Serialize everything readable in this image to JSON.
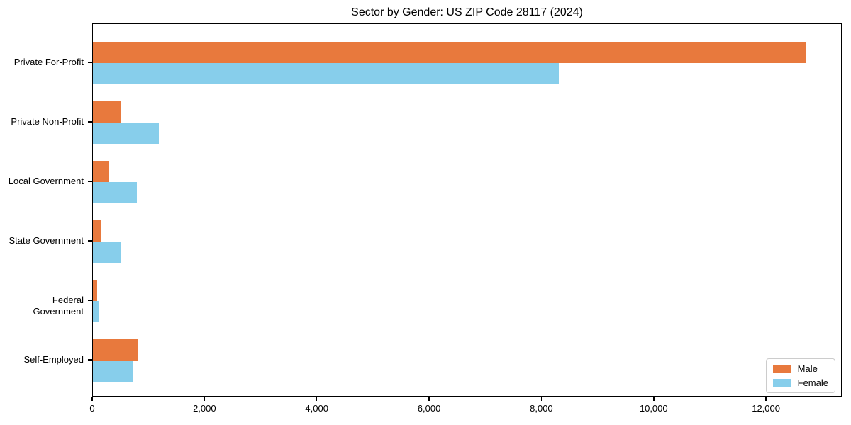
{
  "title": "Sector by Gender: US ZIP Code 28117 (2024)",
  "colors": {
    "male": "#e8793d",
    "female": "#87ceeb",
    "axis": "#000000",
    "legend_border": "#cccccc",
    "background": "#ffffff"
  },
  "legend": {
    "position": "lower right",
    "items": [
      {
        "label": "Male",
        "color": "#e8793d"
      },
      {
        "label": "Female",
        "color": "#87ceeb"
      }
    ]
  },
  "chart_data": {
    "type": "bar",
    "orientation": "horizontal",
    "title": "Sector by Gender: US ZIP Code 28117 (2024)",
    "categories": [
      "Private For-Profit",
      "Private Non-Profit",
      "Local Government",
      "State Government",
      "Federal Government",
      "Self-Employed"
    ],
    "series": [
      {
        "name": "Male",
        "color": "#e8793d",
        "values": [
          12700,
          510,
          280,
          140,
          75,
          800
        ]
      },
      {
        "name": "Female",
        "color": "#87ceeb",
        "values": [
          8300,
          1180,
          780,
          490,
          110,
          710
        ]
      }
    ],
    "xlabel": "",
    "ylabel": "",
    "xlim": [
      0,
      13350
    ],
    "xticks": [
      0,
      2000,
      4000,
      6000,
      8000,
      10000,
      12000
    ],
    "xtick_labels": [
      "0",
      "2,000",
      "4,000",
      "6,000",
      "8,000",
      "10,000",
      "12,000"
    ],
    "grid": false,
    "legend_position": "lower right"
  }
}
